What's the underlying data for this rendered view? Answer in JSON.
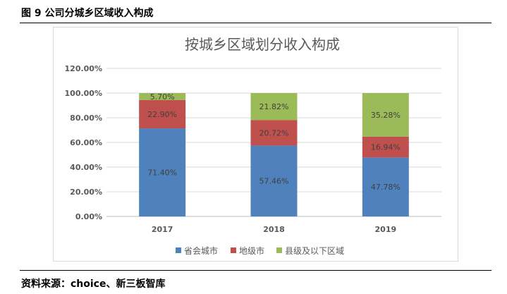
{
  "figure": {
    "caption": "图 9  公司分城乡区域收入构成",
    "source": "资料来源：choice、新三板智库"
  },
  "chart_data": {
    "type": "bar",
    "stacked": true,
    "title": "按城乡区域划分收入构成",
    "categories": [
      "2017",
      "2018",
      "2019"
    ],
    "series": [
      {
        "name": "省会城市",
        "values": [
          71.4,
          57.46,
          47.78
        ],
        "labels": [
          "71.40%",
          "57.46%",
          "47.78%"
        ],
        "color": "#4f81bd"
      },
      {
        "name": "地级市",
        "values": [
          22.9,
          20.72,
          16.94
        ],
        "labels": [
          "22.90%",
          "20.72%",
          "16.94%"
        ],
        "color": "#c0504d"
      },
      {
        "name": "县级及以下区域",
        "values": [
          5.7,
          21.82,
          35.28
        ],
        "labels": [
          "5.70%",
          "21.82%",
          "35.28%"
        ],
        "color": "#9bbb59"
      }
    ],
    "ylim": [
      0,
      120
    ],
    "yticks": [
      "0.00%",
      "20.00%",
      "40.00%",
      "60.00%",
      "80.00%",
      "100.00%",
      "120.00%"
    ],
    "grid": true,
    "legend_position": "bottom"
  }
}
